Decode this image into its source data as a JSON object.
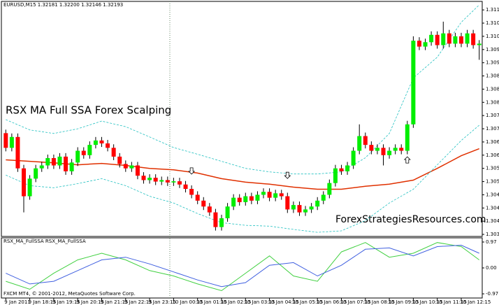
{
  "chart_data": [
    {
      "type": "candlestick",
      "title": "EURUSD,M15 1.32181 1.32200 1.32146 1.32193",
      "annotation": "RSX MA Full SSA Forex Scalping",
      "watermark": "ForexStrategiesResources.com",
      "categories": [
        "9 Jan 2011",
        null,
        null,
        null,
        "9 Jan 18:15",
        null,
        null,
        null,
        "9 Jan 19:15",
        null,
        null,
        null,
        "9 Jan 20:15",
        null,
        null,
        null,
        "9 Jan 21:15",
        null,
        null,
        null,
        "9 Jan 22:15",
        null,
        null,
        null,
        "9 Jan 23:15",
        null,
        null,
        null,
        "10 Jan 00:15",
        null,
        null,
        null,
        "10 Jan 01:15",
        null,
        null,
        null,
        "10 Jan 02:15",
        null,
        null,
        null,
        "10 Jan 03:15",
        null,
        null,
        null,
        "10 Jan 04:15",
        null,
        null,
        null,
        "10 Jan 05:15",
        null,
        null,
        null,
        "10 Jan 06:15",
        null,
        null,
        null,
        "10 Jan 07:15",
        null,
        null,
        null,
        "10 Jan 08:15",
        null,
        null,
        null,
        "10 Jan 09:15",
        null,
        null,
        null,
        "10 Jan 10:15",
        null,
        null,
        null,
        "10 Jan 11:15",
        null,
        null,
        null,
        "10 Jan 12:15",
        null,
        null,
        null
      ],
      "open": [
        1.307,
        1.3065,
        1.30687,
        1.3058,
        1.30485,
        1.30545,
        1.3058,
        1.3059,
        1.30615,
        1.3059,
        1.3062,
        1.3057,
        1.306,
        1.3064,
        1.30625,
        1.3066,
        1.30675,
        1.30665,
        1.3065,
        1.3062,
        1.30595,
        1.3058,
        1.3059,
        1.30555,
        1.3054,
        1.30548,
        1.30535,
        1.3054,
        1.30532,
        1.30536,
        1.30525,
        1.3051,
        1.3049,
        1.3047,
        1.3045,
        1.3043,
        1.3038,
        1.3041,
        1.3045,
        1.3048,
        1.30465,
        1.30485,
        1.3047,
        1.3049,
        1.305,
        1.3048,
        1.30495,
        1.30485,
        1.3044,
        1.30455,
        1.3043,
        1.3044,
        1.3045,
        1.3047,
        1.3049,
        1.3053,
        1.3058,
        1.3057,
        1.3059,
        1.3064,
        1.3069,
        1.3066,
        1.3064,
        1.3065,
        1.30625,
        1.3064,
        1.3065,
        1.3064,
        1.3073,
        1.31015,
        1.30995,
        1.3101,
        1.31035,
        1.31,
        1.3104,
        1.31005,
        1.3103,
        1.31005,
        1.3104,
        1.31
      ],
      "high": [
        1.30712,
        1.30699,
        1.30699,
        1.30592,
        1.30557,
        1.30592,
        1.30602,
        1.30627,
        1.30627,
        1.30632,
        1.30632,
        1.30612,
        1.30652,
        1.30652,
        1.30672,
        1.30687,
        1.30687,
        1.30677,
        1.30662,
        1.30632,
        1.30607,
        1.30602,
        1.30602,
        1.30567,
        1.3056,
        1.3056,
        1.30552,
        1.30552,
        1.30548,
        1.30548,
        1.30537,
        1.30522,
        1.30502,
        1.30482,
        1.30462,
        1.30442,
        1.30422,
        1.30462,
        1.30492,
        1.30492,
        1.30497,
        1.30497,
        1.30502,
        1.30512,
        1.30512,
        1.30507,
        1.30507,
        1.30497,
        1.30467,
        1.30467,
        1.30452,
        1.30462,
        1.30482,
        1.30502,
        1.30542,
        1.30592,
        1.30592,
        1.30602,
        1.30652,
        1.3073,
        1.30702,
        1.30672,
        1.30662,
        1.30662,
        1.30652,
        1.30662,
        1.30662,
        1.30742,
        1.3103,
        1.31027,
        1.31022,
        1.31047,
        1.31047,
        1.3108,
        1.31052,
        1.31042,
        1.31042,
        1.31052,
        1.31052,
        1.31017
      ],
      "low": [
        1.30638,
        1.30638,
        1.30568,
        1.3043,
        1.30473,
        1.30533,
        1.30568,
        1.30578,
        1.30578,
        1.30578,
        1.30558,
        1.30558,
        1.30588,
        1.30613,
        1.30613,
        1.30648,
        1.30653,
        1.30638,
        1.30608,
        1.30583,
        1.30568,
        1.30568,
        1.30543,
        1.30528,
        1.30528,
        1.30523,
        1.30523,
        1.3052,
        1.3052,
        1.30513,
        1.30498,
        1.30478,
        1.30458,
        1.30438,
        1.30418,
        1.30368,
        1.30368,
        1.30398,
        1.30438,
        1.30453,
        1.30453,
        1.30458,
        1.30458,
        1.30478,
        1.30468,
        1.30468,
        1.30473,
        1.30428,
        1.30428,
        1.30418,
        1.30418,
        1.30428,
        1.30438,
        1.30458,
        1.30478,
        1.30518,
        1.30558,
        1.30558,
        1.30578,
        1.30628,
        1.30648,
        1.30628,
        1.30628,
        1.3059,
        1.30613,
        1.30628,
        1.30628,
        1.30628,
        1.30718,
        1.30983,
        1.30983,
        1.30998,
        1.30988,
        1.30988,
        1.30993,
        1.30993,
        1.30993,
        1.30993,
        1.30988,
        1.3095
      ],
      "close": [
        1.3065,
        1.30687,
        1.3058,
        1.30485,
        1.30545,
        1.3058,
        1.3059,
        1.30615,
        1.3059,
        1.3062,
        1.3057,
        1.306,
        1.3064,
        1.30625,
        1.3066,
        1.30675,
        1.30665,
        1.3065,
        1.3062,
        1.30595,
        1.3058,
        1.3059,
        1.30555,
        1.3054,
        1.30548,
        1.30535,
        1.3054,
        1.30532,
        1.30536,
        1.30525,
        1.3051,
        1.3049,
        1.3047,
        1.3045,
        1.3043,
        1.3038,
        1.3041,
        1.3045,
        1.3048,
        1.30465,
        1.30485,
        1.3047,
        1.3049,
        1.305,
        1.3048,
        1.30495,
        1.30485,
        1.3044,
        1.30455,
        1.3043,
        1.3044,
        1.3045,
        1.3047,
        1.3049,
        1.3053,
        1.3058,
        1.3057,
        1.3059,
        1.3064,
        1.3069,
        1.3066,
        1.3064,
        1.3065,
        1.30625,
        1.3064,
        1.3065,
        1.3064,
        1.3073,
        1.31015,
        1.30995,
        1.3101,
        1.31035,
        1.31,
        1.3104,
        1.31005,
        1.3103,
        1.31005,
        1.3104,
        1.31,
        1.31005
      ],
      "up_color": "#00ee00",
      "down_color": "#ff0000",
      "wick_color": "#000000",
      "overlays": [
        {
          "color": "#e03000",
          "dash": false,
          "x": [
            0,
            4,
            8,
            12,
            16,
            20,
            24,
            28,
            32,
            36,
            40,
            44,
            48,
            52,
            56,
            60,
            64,
            68,
            72,
            76,
            79
          ],
          "values": [
            1.30609,
            1.30604,
            1.30599,
            1.30592,
            1.30597,
            1.3059,
            1.3058,
            1.30575,
            1.30564,
            1.30545,
            1.30533,
            1.30526,
            1.30516,
            1.30509,
            1.30509,
            1.30519,
            1.30526,
            1.3054,
            1.3058,
            1.30623,
            1.30647
          ]
        },
        {
          "color": "#20c0c0",
          "dash": true,
          "x": [
            0,
            4,
            8,
            12,
            16,
            20,
            24,
            28,
            32,
            36,
            40,
            44,
            48,
            52,
            56,
            60,
            64,
            68,
            72,
            76,
            79
          ],
          "values": [
            1.30746,
            1.30711,
            1.30699,
            1.30715,
            1.30741,
            1.30722,
            1.30687,
            1.30651,
            1.30628,
            1.30604,
            1.3058,
            1.30568,
            1.30561,
            1.30561,
            1.30568,
            1.30616,
            1.30699,
            1.30888,
            1.30959,
            1.31078,
            1.31137
          ]
        },
        {
          "color": "#20c0c0",
          "dash": true,
          "x": [
            0,
            4,
            8,
            12,
            16,
            20,
            24,
            28,
            32,
            36,
            40,
            44,
            48,
            52,
            56,
            60,
            64,
            68,
            72,
            76,
            79
          ],
          "values": [
            1.30557,
            1.30521,
            1.30514,
            1.30528,
            1.30545,
            1.30521,
            1.30485,
            1.30462,
            1.30426,
            1.30395,
            1.30386,
            1.30383,
            1.30372,
            1.30362,
            1.30367,
            1.30402,
            1.30462,
            1.30509,
            1.30592,
            1.30675,
            1.30727
          ]
        }
      ],
      "arrows": [
        {
          "x": 31,
          "value": 1.3057,
          "direction": "down"
        },
        {
          "x": 47,
          "value": 1.30555,
          "direction": "down"
        },
        {
          "x": 67,
          "value": 1.3061,
          "direction": "up"
        }
      ],
      "ylim": [
        1.30348,
        1.31149
      ],
      "yticks": [
        {
          "value": 1.30355,
          "label": "1.30355"
        },
        {
          "value": 1.304,
          "label": "1.30400"
        },
        {
          "value": 1.30445,
          "label": "1.30445"
        },
        {
          "value": 1.3049,
          "label": "1.30490"
        },
        {
          "value": 1.30535,
          "label": "1.30535"
        },
        {
          "value": 1.3058,
          "label": "1.30580"
        },
        {
          "value": 1.30625,
          "label": "1.30625"
        },
        {
          "value": 1.3067,
          "label": "1.30670"
        },
        {
          "value": 1.30715,
          "label": "1.30715"
        },
        {
          "value": 1.3076,
          "label": "1.30760"
        },
        {
          "value": 1.30805,
          "label": "1.30805"
        },
        {
          "value": 1.3085,
          "label": "1.30850"
        },
        {
          "value": 1.30895,
          "label": "1.30895"
        },
        {
          "value": 1.3094,
          "label": "1.30940"
        },
        {
          "value": 1.30985,
          "label": "1.30985"
        },
        {
          "value": 1.3103,
          "label": "1.31030"
        },
        {
          "value": 1.31075,
          "label": "1.31075"
        },
        {
          "value": 1.3112,
          "label": "1.31120"
        }
      ]
    },
    {
      "type": "line",
      "title": "RSX_MA_FullSSA RSX_MA_FullSSA",
      "footer": "FXCM MT4, © 2001-2012, MetaQuotes Software Corp.",
      "series": [
        {
          "color": "#40d040",
          "x": [
            0,
            4,
            8,
            12,
            16,
            20,
            24,
            28,
            32,
            36,
            40,
            44,
            48,
            52,
            56,
            60,
            64,
            68,
            72,
            76,
            79
          ],
          "values": [
            -0.5,
            -0.8,
            -0.2,
            0.3,
            0.55,
            0.3,
            -0.1,
            -0.3,
            -0.6,
            -0.85,
            -0.2,
            0.45,
            -0.3,
            -0.5,
            0.6,
            0.95,
            0.4,
            0.55,
            0.95,
            0.8,
            0.3
          ]
        },
        {
          "color": "#4060e0",
          "x": [
            0,
            4,
            8,
            12,
            16,
            20,
            24,
            28,
            32,
            36,
            40,
            44,
            48,
            52,
            56,
            60,
            64,
            68,
            72,
            76,
            79
          ],
          "values": [
            -0.2,
            -0.6,
            -0.5,
            -0.1,
            0.3,
            0.4,
            0.15,
            -0.15,
            -0.45,
            -0.7,
            -0.55,
            0.1,
            0.2,
            -0.3,
            0.1,
            0.7,
            0.75,
            0.45,
            0.8,
            0.85,
            0.55
          ]
        }
      ],
      "ylim": [
        -1.1,
        1.1
      ],
      "yticks": [
        -0.97,
        {
          "value": 0,
          "label": "0.00"
        },
        0.97
      ]
    }
  ]
}
